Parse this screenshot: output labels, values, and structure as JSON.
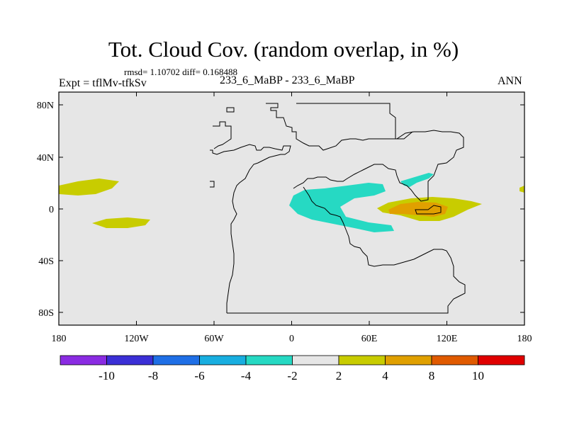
{
  "title": "Tot. Cloud Cov. (random overlap, in %)",
  "stats": "rmsd= 1.10702 diff= 0.168488",
  "experiment": "Expt = tflMv-tfkSv",
  "comparison": "233_6_MaBP - 233_6_MaBP",
  "season": "ANN",
  "axes": {
    "x_ticks": [
      "180",
      "120W",
      "60W",
      "0",
      "60E",
      "120E",
      "180"
    ],
    "y_ticks": [
      "80N",
      "40N",
      "0",
      "40S",
      "80S"
    ]
  },
  "colorbar": {
    "labels": [
      "-10",
      "-8",
      "-6",
      "-4",
      "-2",
      "2",
      "4",
      "8",
      "10"
    ],
    "colors": [
      "#8a2be2",
      "#3b2fd6",
      "#1f6fe6",
      "#18aee0",
      "#26d9c3",
      "#e6e6e6",
      "#c8cc00",
      "#e0a000",
      "#e05a00",
      "#e00000"
    ]
  },
  "map_colors": {
    "background": "#e6e6e6",
    "coast": "#000000",
    "neg_2_4": "#26d9c3",
    "pos_2_4": "#c8cc00",
    "pos_4_8": "#e0a000"
  }
}
